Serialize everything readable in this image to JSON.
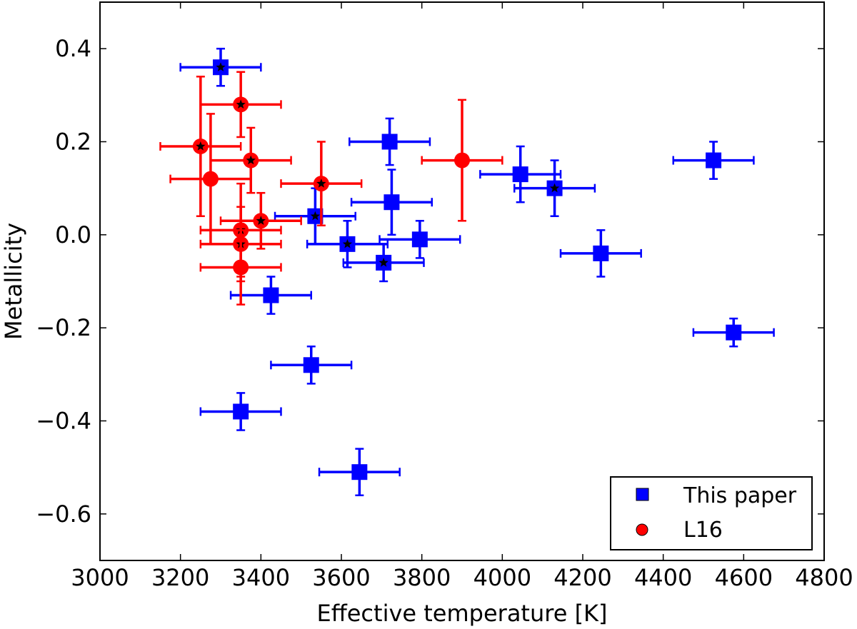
{
  "chart_data": {
    "type": "scatter",
    "title": "",
    "xlabel": "Effective temperature [K]",
    "ylabel": "Metallicity",
    "xlim": [
      3000,
      4800
    ],
    "ylim": [
      -0.7,
      0.5
    ],
    "xticks": [
      3000,
      3200,
      3400,
      3600,
      3800,
      4000,
      4200,
      4400,
      4600,
      4800
    ],
    "yticks": [
      -0.6,
      -0.4,
      -0.2,
      0.0,
      0.2,
      0.4
    ],
    "ytick_labels": [
      "−0.6",
      "−0.4",
      "−0.2",
      "0.0",
      "0.2",
      "0.4"
    ],
    "grid": false,
    "legend_position": "lower-right",
    "series": [
      {
        "name": "This paper",
        "marker": "square",
        "color": "#0000ff",
        "points": [
          {
            "x": 3300,
            "y": 0.36,
            "xerr": 100,
            "yerr": 0.04,
            "star": true
          },
          {
            "x": 3425,
            "y": -0.13,
            "xerr": 100,
            "yerr": 0.04,
            "star": false
          },
          {
            "x": 3350,
            "y": -0.38,
            "xerr": 100,
            "yerr": 0.04,
            "star": false
          },
          {
            "x": 3525,
            "y": -0.28,
            "xerr": 100,
            "yerr": 0.04,
            "star": false
          },
          {
            "x": 3535,
            "y": 0.04,
            "xerr": 100,
            "yerr": 0.06,
            "star": true
          },
          {
            "x": 3615,
            "y": -0.02,
            "xerr": 100,
            "yerr": 0.05,
            "star": true
          },
          {
            "x": 3645,
            "y": -0.51,
            "xerr": 100,
            "yerr": 0.05,
            "star": false
          },
          {
            "x": 3705,
            "y": -0.06,
            "xerr": 100,
            "yerr": 0.04,
            "star": true
          },
          {
            "x": 3720,
            "y": 0.2,
            "xerr": 100,
            "yerr": 0.05,
            "star": false
          },
          {
            "x": 3725,
            "y": 0.07,
            "xerr": 100,
            "yerr": 0.07,
            "star": false
          },
          {
            "x": 3795,
            "y": -0.01,
            "xerr": 100,
            "yerr": 0.04,
            "star": false
          },
          {
            "x": 4045,
            "y": 0.13,
            "xerr": 100,
            "yerr": 0.06,
            "star": false
          },
          {
            "x": 4130,
            "y": 0.1,
            "xerr": 100,
            "yerr": 0.06,
            "star": true
          },
          {
            "x": 4245,
            "y": -0.04,
            "xerr": 100,
            "yerr": 0.05,
            "star": false
          },
          {
            "x": 4525,
            "y": 0.16,
            "xerr": 100,
            "yerr": 0.04,
            "star": false
          },
          {
            "x": 4575,
            "y": -0.21,
            "xerr": 100,
            "yerr": 0.03,
            "star": false
          }
        ]
      },
      {
        "name": "L16",
        "marker": "circle",
        "color": "#ff0000",
        "points": [
          {
            "x": 3250,
            "y": 0.19,
            "xerr": 100,
            "yerr": 0.15,
            "star": true
          },
          {
            "x": 3275,
            "y": 0.12,
            "xerr": 100,
            "yerr": 0.14,
            "star": false
          },
          {
            "x": 3350,
            "y": 0.28,
            "xerr": 100,
            "yerr": 0.07,
            "star": true
          },
          {
            "x": 3375,
            "y": 0.16,
            "xerr": 100,
            "yerr": 0.07,
            "star": true
          },
          {
            "x": 3400,
            "y": 0.03,
            "xerr": 100,
            "yerr": 0.06,
            "star": true
          },
          {
            "x": 3350,
            "y": 0.01,
            "xerr": 100,
            "yerr": 0.1,
            "star": true
          },
          {
            "x": 3350,
            "y": -0.02,
            "xerr": 100,
            "yerr": 0.08,
            "star": true
          },
          {
            "x": 3350,
            "y": -0.07,
            "xerr": 100,
            "yerr": 0.08,
            "star": false
          },
          {
            "x": 3550,
            "y": 0.11,
            "xerr": 100,
            "yerr": 0.09,
            "star": true
          },
          {
            "x": 3900,
            "y": 0.16,
            "xerr": 100,
            "yerr": 0.13,
            "star": false
          }
        ]
      }
    ]
  },
  "legend": {
    "items": [
      {
        "label": "This paper",
        "color": "#0000ff",
        "marker": "square"
      },
      {
        "label": "L16",
        "color": "#ff0000",
        "marker": "circle"
      }
    ]
  }
}
